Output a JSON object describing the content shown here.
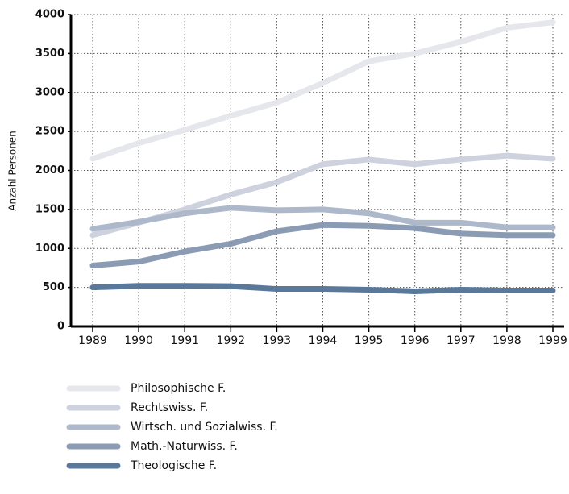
{
  "chart_data": {
    "type": "line",
    "y_label": "Anzahl Personen",
    "categories": [
      "1989",
      "1990",
      "1991",
      "1992",
      "1993",
      "1994",
      "1995",
      "1996",
      "1997",
      "1998",
      "1999"
    ],
    "ylim": [
      0,
      4000
    ],
    "yticks": [
      0,
      500,
      1000,
      1500,
      2000,
      2500,
      3000,
      3500,
      4000
    ],
    "grid": true,
    "series": [
      {
        "name": "Philosophische F.",
        "color": "#e6e7ec",
        "values": [
          2150,
          2350,
          2520,
          2700,
          2870,
          3120,
          3400,
          3500,
          3650,
          3830,
          3900
        ]
      },
      {
        "name": "Rechtswiss. F.",
        "color": "#cdd2de",
        "values": [
          1170,
          1330,
          1500,
          1690,
          1850,
          2080,
          2140,
          2080,
          2140,
          2190,
          2150
        ]
      },
      {
        "name": "Wirtsch. und Sozialwiss. F.",
        "color": "#aeb8cb",
        "values": [
          1250,
          1340,
          1450,
          1520,
          1490,
          1500,
          1450,
          1330,
          1330,
          1270,
          1270
        ]
      },
      {
        "name": "Math.-Naturwiss. F.",
        "color": "#8a9bb3",
        "values": [
          780,
          830,
          960,
          1060,
          1220,
          1300,
          1290,
          1260,
          1190,
          1170,
          1170
        ]
      },
      {
        "name": "Theologische F.",
        "color": "#5a7899",
        "values": [
          500,
          520,
          520,
          515,
          480,
          480,
          470,
          450,
          470,
          460,
          460
        ]
      }
    ]
  }
}
